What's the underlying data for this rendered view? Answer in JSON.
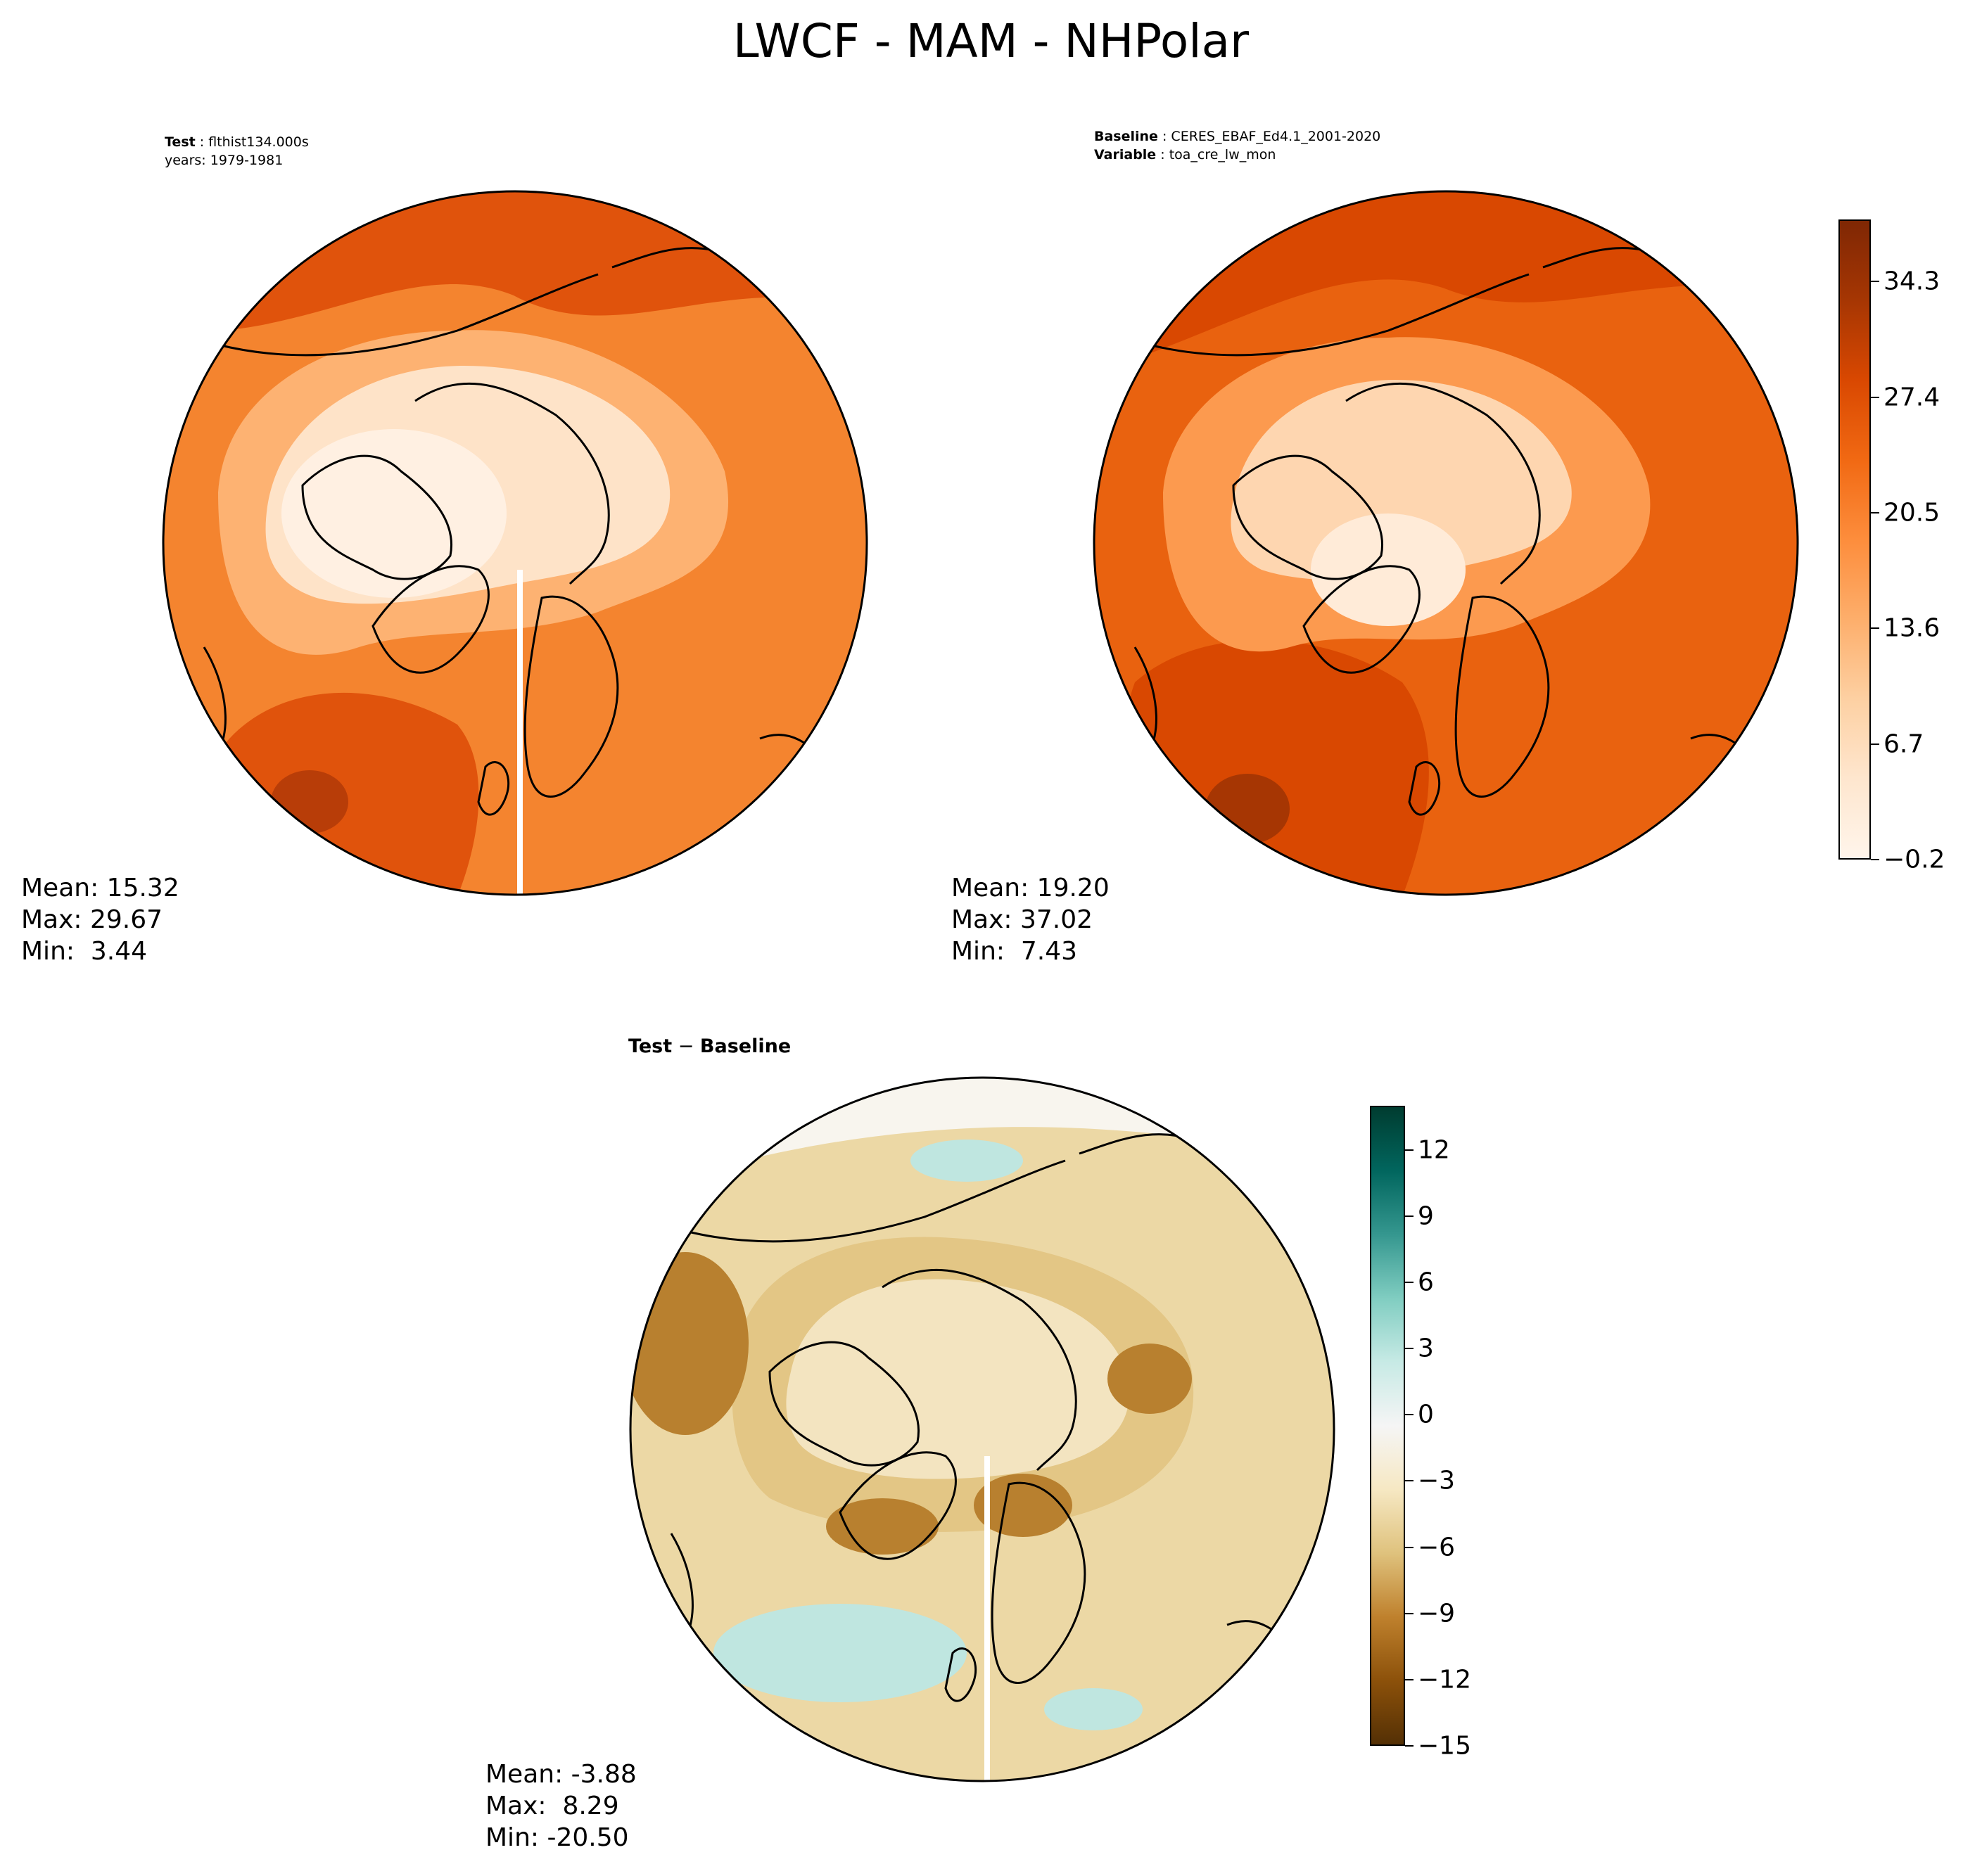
{
  "title": "LWCF - MAM - NHPolar",
  "panels": {
    "test": {
      "header_line1_key": "Test",
      "header_line1_value": "flthist134.000s",
      "header_line2": "years: 1979-1981",
      "stats": {
        "mean": "Mean: 15.32",
        "max": "Max: 29.67",
        "min": "Min:  3.44"
      }
    },
    "baseline": {
      "header_line1_key": "Baseline",
      "header_line1_value": "CERES_EBAF_Ed4.1_2001-2020",
      "header_line2_key": "Variable",
      "header_line2_value": "toa_cre_lw_mon",
      "stats": {
        "mean": "Mean: 19.20",
        "max": "Max: 37.02",
        "min": "Min:  7.43"
      }
    },
    "diff": {
      "header_part1": "Test",
      "header_sep": " − ",
      "header_part2": "Baseline",
      "stats": {
        "mean": "Mean: -3.88",
        "max": "Max:  8.29",
        "min": "Min: -20.50"
      }
    }
  },
  "colorbars": {
    "main": {
      "ticks": [
        "−0.2",
        "6.7",
        "13.6",
        "20.5",
        "27.4",
        "34.3"
      ],
      "tick_values": [
        -0.2,
        6.7,
        13.6,
        20.5,
        27.4,
        34.3
      ],
      "range": [
        -0.2,
        38.0
      ],
      "colors": [
        "#fff5eb",
        "#fee6ce",
        "#fdd0a2",
        "#fdae6b",
        "#fd8d3c",
        "#f16913",
        "#d94801",
        "#a63603",
        "#7f2704"
      ]
    },
    "diff": {
      "ticks": [
        "−15",
        "−12",
        "−9",
        "−6",
        "−3",
        "0",
        "3",
        "6",
        "9",
        "12"
      ],
      "tick_values": [
        -15,
        -12,
        -9,
        -6,
        -3,
        0,
        3,
        6,
        9,
        12
      ],
      "range": [
        -15,
        14
      ],
      "colors": [
        "#543005",
        "#8c510a",
        "#bf812d",
        "#dfc27d",
        "#f6e8c3",
        "#f5f5f5",
        "#c7eae5",
        "#80cdc1",
        "#35978f",
        "#01665e",
        "#003c30"
      ]
    }
  },
  "map_colors": {
    "test": {
      "outer": "#f4842f",
      "mid": "#fdb272",
      "inner": "#fee3c8",
      "core": "#fff0e2",
      "hot": "#e0530c",
      "hottest": "#b83d08"
    },
    "baseline": {
      "outer": "#e9620f",
      "mid": "#fc9a4f",
      "inner": "#fed6b0",
      "core": "#ffebd8",
      "hot": "#d94801",
      "hottest": "#a63603"
    },
    "diff": {
      "outer": "#ecd8a5",
      "mid": "#e3c685",
      "inner": "#f3e4c0",
      "brown": "#b8802f",
      "teal": "#bfe6e0",
      "white": "#f8f5ee"
    }
  }
}
